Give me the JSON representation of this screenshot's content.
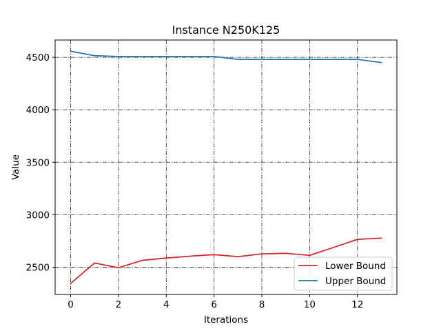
{
  "chart_data": {
    "type": "line",
    "title": "Instance N250K125",
    "xlabel": "Iterations",
    "ylabel": "Value",
    "xlim": [
      -0.65,
      13.65
    ],
    "ylim": [
      2240,
      4665
    ],
    "xticks": [
      0,
      2,
      4,
      6,
      8,
      10,
      12
    ],
    "yticks": [
      2500,
      3000,
      3500,
      4000,
      4500
    ],
    "grid": true,
    "legend_position": "lower-right",
    "x": [
      0,
      1,
      2,
      3,
      4,
      5,
      6,
      7,
      8,
      9,
      10,
      11,
      12,
      13
    ],
    "series": [
      {
        "name": "Lower Bound",
        "color": "#d62728",
        "values": [
          2345,
          2540,
          2495,
          2565,
          2587,
          2605,
          2620,
          2600,
          2627,
          2632,
          2613,
          2688,
          2765,
          2777
        ]
      },
      {
        "name": "Upper Bound",
        "color": "#1f77b4",
        "values": [
          4558,
          4515,
          4508,
          4508,
          4508,
          4508,
          4508,
          4480,
          4480,
          4480,
          4480,
          4480,
          4480,
          4450
        ]
      }
    ]
  }
}
